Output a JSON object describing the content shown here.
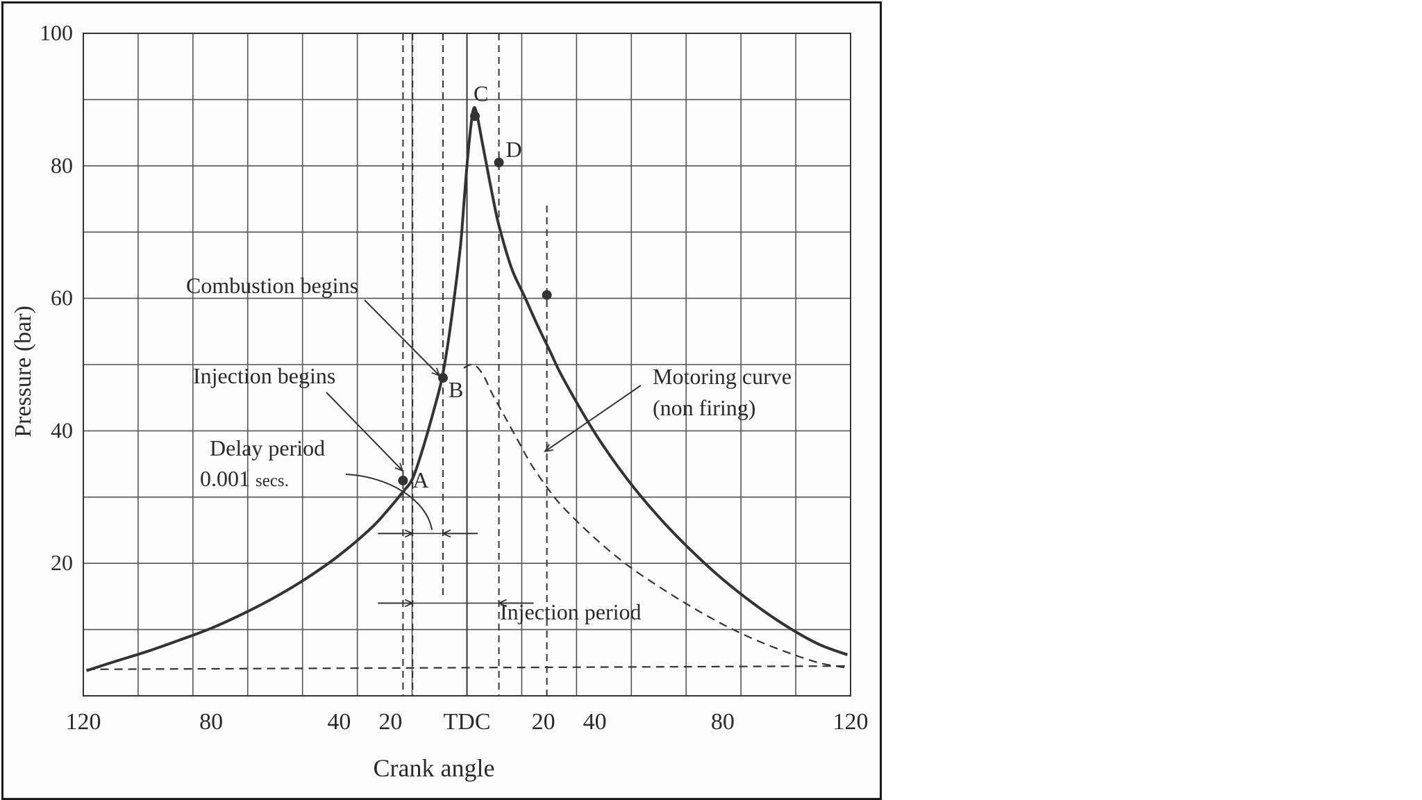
{
  "chart_data": {
    "type": "line",
    "title": "",
    "xlabel": "Crank angle",
    "ylabel": "Pressure (bar)",
    "xlim": [
      -120,
      120
    ],
    "ylim": [
      0,
      100
    ],
    "x_tick_labels": [
      "120",
      "80",
      "40",
      "20",
      "TDC",
      "20",
      "40",
      "80",
      "120"
    ],
    "y_tick_labels": [
      "100",
      "80",
      "60",
      "40",
      "20"
    ],
    "grid": true,
    "series": [
      {
        "style": "solid",
        "x": [
          -119,
          -110,
          -100,
          -90,
          -80,
          -70,
          -60,
          -50,
          -40,
          -30,
          -25,
          -20,
          -17,
          -14,
          -11,
          -8,
          -6,
          -4,
          -2,
          -1,
          0,
          1,
          2,
          3,
          5,
          6,
          8,
          10,
          14,
          18,
          22,
          26,
          30,
          40,
          50,
          60,
          70,
          80,
          90,
          100,
          110,
          119
        ],
        "y": [
          3.8,
          5.2,
          6.7,
          8.4,
          10.2,
          12.4,
          14.9,
          17.8,
          21.2,
          25.3,
          27.9,
          30.8,
          32.8,
          37,
          42,
          47.5,
          53,
          60,
          68,
          74,
          80,
          85,
          88.5,
          88,
          83,
          80.5,
          75.5,
          71,
          64.5,
          60.3,
          56,
          52,
          48,
          39.7,
          32.8,
          27,
          22,
          17.6,
          13.8,
          10.5,
          7.8,
          6.2
        ]
      },
      {
        "name": "Motoring curve (non firing)",
        "style": "dashed",
        "x": [
          -1,
          2,
          5,
          8,
          12,
          16,
          20,
          25,
          30,
          40,
          50,
          60,
          70,
          80,
          90,
          100,
          110,
          119
        ],
        "y": [
          49.5,
          50,
          48.5,
          45.5,
          42,
          38.5,
          35,
          31.5,
          28.5,
          23.8,
          19.8,
          16.5,
          13.5,
          10.8,
          8.5,
          6.6,
          5,
          4.2
        ]
      },
      {
        "style": "dashed",
        "x": [
          -119,
          119
        ],
        "y": [
          4,
          4.5
        ]
      }
    ],
    "points": [
      {
        "label": "A",
        "x": -20,
        "y": 32.5
      },
      {
        "label": "B",
        "x": -7.5,
        "y": 48
      },
      {
        "label": "C",
        "x": 2.5,
        "y": 87.5
      },
      {
        "label": "D",
        "x": 10,
        "y": 80.5
      },
      {
        "label": "",
        "x": 25,
        "y": 60.5
      }
    ],
    "vertical_markers": [
      {
        "x": -20,
        "style": "dashed"
      },
      {
        "x": -17,
        "style": "dashed"
      },
      {
        "x": -7.5,
        "style": "dashed"
      },
      {
        "x": 0,
        "style": "solid"
      },
      {
        "x": 10,
        "style": "dashed"
      },
      {
        "x": 25,
        "style": "dashed"
      }
    ],
    "annotations": {
      "combustion_begins": "Combustion begins",
      "injection_begins": "Injection begins",
      "delay_period": "Delay period",
      "delay_value": "0.001",
      "delay_unit": "secs.",
      "injection_period": "Injection period",
      "motoring_curve": "Motoring curve",
      "non_firing": "(non firing)"
    },
    "delay_interval": {
      "from": -17,
      "to": -7.5,
      "at_y": 24.5
    },
    "injection_interval": {
      "from": -17,
      "to": 10,
      "at_y": 14
    }
  }
}
